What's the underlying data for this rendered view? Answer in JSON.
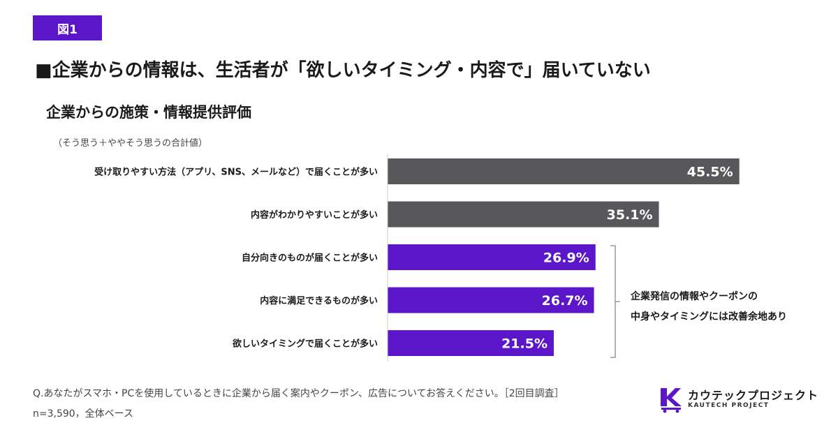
{
  "figure_label": "図1",
  "headline": "■企業からの情報は、生活者が「欲しいタイミング・内容で」届いていない",
  "chart_subtitle": "企業からの施策・情報提供評価",
  "chart_note": "（そう思う＋ややそう思うの合計値）",
  "bracket_note": {
    "line1": "企業発信の情報やクーポンの",
    "line2": "中身やタイミングには改善余地あり"
  },
  "footer": {
    "question": "Q.あなたがスマホ・PCを使用しているときに企業から届く案内やクーポン、広告についてお答えください。［2回目調査］",
    "sample": "n=3,590，全体ベース"
  },
  "logo": {
    "name": "カウテックプロジェクト",
    "sub": "KAUTECH PROJECT"
  },
  "colors": {
    "gray": "#58575a",
    "purple": "#5a16c8",
    "text": "#1a1a1a"
  },
  "chart_data": {
    "type": "bar",
    "orientation": "horizontal",
    "unit": "%",
    "xlim": [
      0,
      50
    ],
    "categories": [
      "受け取りやすい方法（アプリ、SNS、メールなど）で届くことが多い",
      "内容がわかりやすいことが多い",
      "自分向きのものが届くことが多い",
      "内容に満足できるものが多い",
      "欲しいタイミングで届くことが多い"
    ],
    "values": [
      45.5,
      35.1,
      26.9,
      26.7,
      21.5
    ],
    "value_labels": [
      "45.5%",
      "35.1%",
      "26.9%",
      "26.7%",
      "21.5%"
    ],
    "bar_colors": [
      "gray",
      "gray",
      "purple",
      "purple",
      "purple"
    ],
    "grid": false,
    "legend": "none"
  }
}
